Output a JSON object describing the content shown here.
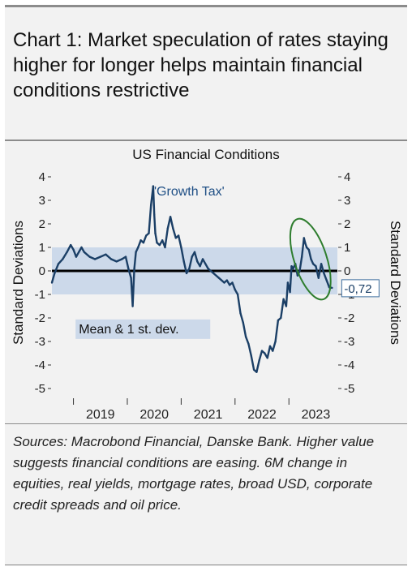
{
  "heading": "Chart 1: Market speculation of rates staying higher for longer helps maintain financial conditions restrictive",
  "sources": "Sources: Macrobond Financial, Danske Bank. Higher value suggests financial conditions are easing. 6M change in equities, real yields, mortgage rates, broad USD, corporate credit spreads and oil price.",
  "chart_data": {
    "type": "line",
    "title": "US Financial Conditions",
    "ylabel_left": "Standard Deviations",
    "ylabel_right": "Standard Deviations",
    "ylim": [
      -5,
      4
    ],
    "yticks": [
      4,
      3,
      2,
      1,
      0,
      -1,
      -2,
      -3,
      -4,
      -5
    ],
    "ytick_labels": [
      "4",
      "3",
      "2",
      "1",
      "0",
      "-1",
      "-2",
      "-3",
      "-4",
      "-5"
    ],
    "xlim": [
      2018.6,
      2023.9
    ],
    "xtick_labels": [
      "2019",
      "2020",
      "2021",
      "2022",
      "2023"
    ],
    "band": {
      "low": -1,
      "high": 1,
      "label": "Mean & 1 st. dev."
    },
    "annotation": "'Growth Tax'",
    "last_value_label": "-0,72",
    "grid": false,
    "colors": {
      "line": "#1b3f66",
      "band": "#ccd9ea",
      "zero": "#000000",
      "ellipse": "#2e7d2e",
      "label_box": "#3f6f9f"
    },
    "series": [
      {
        "x": [
          2018.6,
          2018.65,
          2018.72,
          2018.8,
          2018.88,
          2018.95,
          2019.0,
          2019.05,
          2019.1,
          2019.15,
          2019.2,
          2019.3,
          2019.4,
          2019.5,
          2019.6,
          2019.7,
          2019.8,
          2019.9,
          2019.97,
          2020.02,
          2020.07,
          2020.1,
          2020.13,
          2020.16,
          2020.2,
          2020.25,
          2020.3,
          2020.35,
          2020.4,
          2020.44,
          2020.48,
          2020.5,
          2020.52,
          2020.55,
          2020.6,
          2020.65,
          2020.7,
          2020.75,
          2020.8,
          2020.85,
          2020.9,
          2020.95,
          2021.0,
          2021.05,
          2021.1,
          2021.15,
          2021.2,
          2021.25,
          2021.3,
          2021.35,
          2021.4,
          2021.45,
          2021.5,
          2021.6,
          2021.7,
          2021.8,
          2021.85,
          2021.9,
          2021.95,
          2022.0,
          2022.05,
          2022.1,
          2022.15,
          2022.2,
          2022.25,
          2022.3,
          2022.35,
          2022.4,
          2022.45,
          2022.5,
          2022.55,
          2022.6,
          2022.65,
          2022.7,
          2022.75,
          2022.8,
          2022.85,
          2022.9,
          2022.95,
          2022.98,
          2023.02,
          2023.05,
          2023.08,
          2023.12,
          2023.16,
          2023.2,
          2023.24,
          2023.28,
          2023.3,
          2023.33,
          2023.37,
          2023.41,
          2023.45,
          2023.5,
          2023.55,
          2023.6,
          2023.65,
          2023.7,
          2023.75,
          2023.8
        ],
        "y": [
          -0.5,
          -0.1,
          0.3,
          0.5,
          0.8,
          1.1,
          0.9,
          0.6,
          0.8,
          1.0,
          0.8,
          0.6,
          0.5,
          0.6,
          0.7,
          0.5,
          0.4,
          0.5,
          0.6,
          0.1,
          -0.3,
          -1.5,
          0.1,
          0.8,
          1.0,
          1.3,
          1.2,
          1.5,
          1.6,
          2.8,
          3.6,
          2.4,
          1.6,
          1.2,
          1.1,
          1.3,
          1.0,
          1.8,
          2.3,
          1.8,
          1.4,
          1.5,
          1.0,
          0.4,
          -0.1,
          0.1,
          0.6,
          0.8,
          0.4,
          0.2,
          0.5,
          0.3,
          0.1,
          -0.1,
          -0.3,
          -0.5,
          -0.4,
          -0.6,
          -0.5,
          -0.8,
          -1.0,
          -1.8,
          -2.2,
          -2.8,
          -3.1,
          -3.6,
          -4.2,
          -4.3,
          -3.8,
          -3.4,
          -3.5,
          -3.7,
          -3.2,
          -3.4,
          -3.0,
          -2.1,
          -2.0,
          -1.2,
          -1.5,
          -0.5,
          -0.9,
          0.2,
          0.1,
          0.3,
          -0.2,
          0.0,
          0.6,
          1.4,
          1.2,
          1.0,
          0.9,
          0.5,
          0.3,
          0.2,
          -0.3,
          0.3,
          -0.1,
          -0.4,
          -0.7,
          -0.72
        ]
      }
    ]
  }
}
